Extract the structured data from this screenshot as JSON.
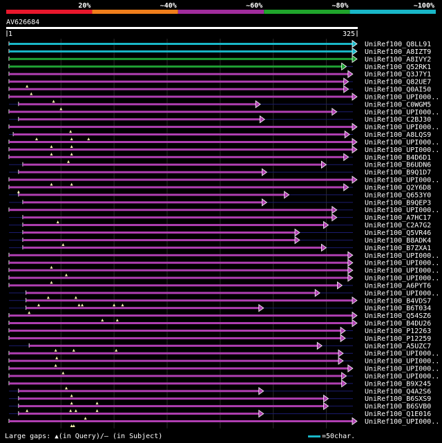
{
  "query": {
    "name": "AV626684",
    "start": "1",
    "end": "325",
    "length": 325
  },
  "scale": {
    "segments": [
      {
        "label": "20%",
        "color": "#e8172c"
      },
      {
        "label": "~40%",
        "color": "#f07e1b"
      },
      {
        "label": "~60%",
        "color": "#a02c9c"
      },
      {
        "label": "~80%",
        "color": "#20a52c"
      },
      {
        "label": "~100%",
        "color": "#19b7c8"
      }
    ]
  },
  "colors": {
    "match": "#b03fb2",
    "good": "#1fa234",
    "best": "#19b7c8",
    "gap_line": "#1c1c70",
    "grid": "#2a2a2a"
  },
  "hits": [
    {
      "name": "UniRef100_Q8LL91",
      "start": 1,
      "end": 325,
      "color": "best",
      "arrow": true,
      "tri": []
    },
    {
      "name": "UniRef100_A8IZT9",
      "start": 1,
      "end": 325,
      "color": "best",
      "arrow": true,
      "tri": []
    },
    {
      "name": "UniRef100_A8IVY2",
      "start": 1,
      "end": 325,
      "color": "good",
      "arrow": true,
      "tri": []
    },
    {
      "name": "UniRef100_Q52RK1",
      "start": 1,
      "end": 315,
      "color": "good",
      "arrow": true,
      "tri": []
    },
    {
      "name": "UniRef100_Q3J7Y1",
      "start": 1,
      "end": 321,
      "color": "match",
      "arrow": true,
      "tri": []
    },
    {
      "name": "UniRef100_Q82UE7",
      "start": 1,
      "end": 317,
      "color": "match",
      "arrow": true,
      "tri": [
        18
      ]
    },
    {
      "name": "UniRef100_Q0AI50",
      "start": 1,
      "end": 317,
      "color": "match",
      "arrow": true,
      "tri": [
        22
      ]
    },
    {
      "name": "UniRef100_UPI000..",
      "start": 1,
      "end": 325,
      "color": "match",
      "arrow": true,
      "tri": [
        43
      ]
    },
    {
      "name": "UniRef100_C0WGM5",
      "start": 10,
      "end": 234,
      "color": "match",
      "arrow": true,
      "tri": [
        50
      ]
    },
    {
      "name": "UniRef100_UPI000..",
      "start": 1,
      "end": 306,
      "color": "match",
      "arrow": true,
      "tri": []
    },
    {
      "name": "UniRef100_C2BJ30",
      "start": 10,
      "end": 238,
      "color": "match",
      "arrow": true,
      "tri": []
    },
    {
      "name": "UniRef100_UPI000..",
      "start": 1,
      "end": 325,
      "color": "match",
      "arrow": true,
      "tri": [
        59
      ]
    },
    {
      "name": "UniRef100_A8LQS9",
      "start": 5,
      "end": 318,
      "color": "match",
      "arrow": true,
      "tri": [
        27,
        60,
        76
      ]
    },
    {
      "name": "UniRef100_UPI000..",
      "start": 1,
      "end": 325,
      "color": "match",
      "arrow": true,
      "tri": [
        41,
        60
      ]
    },
    {
      "name": "UniRef100_UPI000..",
      "start": 1,
      "end": 325,
      "color": "match",
      "arrow": true,
      "tri": [
        41,
        60
      ]
    },
    {
      "name": "UniRef100_B4D6D1",
      "start": 1,
      "end": 317,
      "color": "match",
      "arrow": true,
      "tri": [
        57
      ]
    },
    {
      "name": "UniRef100_B6UDN6",
      "start": 14,
      "end": 296,
      "color": "match",
      "arrow": true,
      "tri": []
    },
    {
      "name": "UniRef100_B9Q1D7",
      "start": 10,
      "end": 240,
      "color": "match",
      "arrow": true,
      "tri": []
    },
    {
      "name": "UniRef100_UPI000..",
      "start": 1,
      "end": 325,
      "color": "match",
      "arrow": true,
      "tri": [
        41,
        60
      ]
    },
    {
      "name": "UniRef100_Q2Y6D8",
      "start": 1,
      "end": 317,
      "color": "match",
      "arrow": true,
      "tri": [
        10
      ]
    },
    {
      "name": "UniRef100_Q653Y0",
      "start": 10,
      "end": 261,
      "color": "match",
      "arrow": true,
      "tri": []
    },
    {
      "name": "UniRef100_B9QEP3",
      "start": 14,
      "end": 240,
      "color": "match",
      "arrow": true,
      "tri": []
    },
    {
      "name": "UniRef100_UPI000..",
      "start": 1,
      "end": 306,
      "color": "match",
      "arrow": true,
      "tri": []
    },
    {
      "name": "UniRef100_A7HC17",
      "start": 14,
      "end": 306,
      "color": "match",
      "arrow": true,
      "tri": [
        47
      ]
    },
    {
      "name": "UniRef100_C2A7G2",
      "start": 14,
      "end": 298,
      "color": "match",
      "arrow": true,
      "tri": []
    },
    {
      "name": "UniRef100_Q5VR46",
      "start": 14,
      "end": 271,
      "color": "match",
      "arrow": true,
      "tri": []
    },
    {
      "name": "UniRef100_B8ADK4",
      "start": 14,
      "end": 271,
      "color": "match",
      "arrow": true,
      "tri": [
        52
      ]
    },
    {
      "name": "UniRef100_B7ZXA1",
      "start": 14,
      "end": 296,
      "color": "match",
      "arrow": true,
      "tri": []
    },
    {
      "name": "UniRef100_UPI000..",
      "start": 1,
      "end": 321,
      "color": "match",
      "arrow": true,
      "tri": []
    },
    {
      "name": "UniRef100_UPI000..",
      "start": 1,
      "end": 321,
      "color": "match",
      "arrow": true,
      "tri": [
        41
      ]
    },
    {
      "name": "UniRef100_UPI000..",
      "start": 1,
      "end": 321,
      "color": "match",
      "arrow": true,
      "tri": [
        55
      ]
    },
    {
      "name": "UniRef100_UPI000..",
      "start": 1,
      "end": 321,
      "color": "match",
      "arrow": true,
      "tri": [
        41
      ]
    },
    {
      "name": "UniRef100_A6PYT6",
      "start": 1,
      "end": 311,
      "color": "match",
      "arrow": true,
      "tri": []
    },
    {
      "name": "UniRef100_UPI000..",
      "start": 17,
      "end": 290,
      "color": "match",
      "arrow": true,
      "tri": [
        38,
        64
      ]
    },
    {
      "name": "UniRef100_B4VDS7",
      "start": 17,
      "end": 325,
      "color": "match",
      "arrow": true,
      "tri": [
        29,
        67,
        70,
        100,
        108
      ]
    },
    {
      "name": "UniRef100_B6T034",
      "start": 17,
      "end": 237,
      "color": "match",
      "arrow": true,
      "tri": [
        20
      ]
    },
    {
      "name": "UniRef100_Q54SZ6",
      "start": 1,
      "end": 325,
      "color": "match",
      "arrow": true,
      "tri": [
        89,
        103
      ]
    },
    {
      "name": "UniRef100_B4DU26",
      "start": 1,
      "end": 325,
      "color": "match",
      "arrow": true,
      "tri": []
    },
    {
      "name": "UniRef100_P12263",
      "start": 1,
      "end": 314,
      "color": "match",
      "arrow": true,
      "tri": []
    },
    {
      "name": "UniRef100_P12259",
      "start": 1,
      "end": 314,
      "color": "match",
      "arrow": true,
      "tri": []
    },
    {
      "name": "UniRef100_A5UZC7",
      "start": 20,
      "end": 292,
      "color": "match",
      "arrow": true,
      "tri": [
        45,
        62,
        102
      ]
    },
    {
      "name": "UniRef100_UPI000..",
      "start": 1,
      "end": 312,
      "color": "match",
      "arrow": true,
      "tri": [
        46
      ]
    },
    {
      "name": "UniRef100_UPI000..",
      "start": 1,
      "end": 312,
      "color": "match",
      "arrow": true,
      "tri": [
        45
      ]
    },
    {
      "name": "UniRef100_UPI000..",
      "start": 1,
      "end": 321,
      "color": "match",
      "arrow": true,
      "tri": [
        52
      ]
    },
    {
      "name": "UniRef100_UPI000..",
      "start": 1,
      "end": 315,
      "color": "match",
      "arrow": true,
      "tri": []
    },
    {
      "name": "UniRef100_B9X245",
      "start": 1,
      "end": 315,
      "color": "match",
      "arrow": true,
      "tri": [
        55
      ]
    },
    {
      "name": "UniRef100_Q4A2S6",
      "start": 10,
      "end": 237,
      "color": "match",
      "arrow": true,
      "tri": [
        60
      ]
    },
    {
      "name": "UniRef100_B6SXS9",
      "start": 10,
      "end": 298,
      "color": "match",
      "arrow": true,
      "tri": [
        60,
        84
      ]
    },
    {
      "name": "UniRef100_B6SVB0",
      "start": 10,
      "end": 298,
      "color": "match",
      "arrow": true,
      "tri": [
        18,
        59,
        64,
        84
      ]
    },
    {
      "name": "UniRef100_Q1E016",
      "start": 10,
      "end": 237,
      "color": "match",
      "arrow": true,
      "tri": [
        73
      ]
    },
    {
      "name": "UniRef100_UPI000..",
      "start": 1,
      "end": 325,
      "color": "match",
      "arrow": true,
      "tri": [
        60,
        62
      ]
    }
  ],
  "legend": {
    "gaps_label": "Large gaps:",
    "query_gap": "(in Query)/",
    "subject_gap": "(in Subject)",
    "key_label": "=50char."
  }
}
